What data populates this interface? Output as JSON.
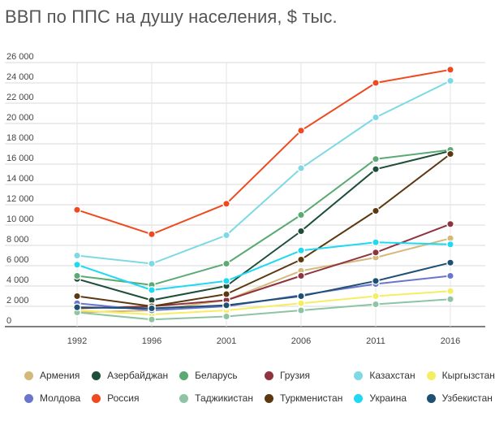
{
  "chart_data": {
    "type": "line",
    "title": "ВВП по ППС на душу населения, $ тыс.",
    "xlabel": "",
    "ylabel": "",
    "x": [
      "1992",
      "1996",
      "2001",
      "2006",
      "2011",
      "2016"
    ],
    "ylim": [
      0,
      26000
    ],
    "yticks": [
      "0",
      "2 000",
      "4 000",
      "6 000",
      "8 000",
      "10 000",
      "12 000",
      "14 000",
      "16 000",
      "18 000",
      "20 000",
      "22 000",
      "24 000",
      "26 000"
    ],
    "grid": "horizontal",
    "legend_position": "bottom",
    "series": [
      {
        "name": "Армения",
        "color": "#d4b97a",
        "values": [
          1400,
          1600,
          2600,
          5500,
          6800,
          8700
        ]
      },
      {
        "name": "Азербайджан",
        "color": "#1e4d38",
        "values": [
          4700,
          2600,
          4000,
          9400,
          15500,
          17300
        ]
      },
      {
        "name": "Беларусь",
        "color": "#5aaa72",
        "values": [
          5000,
          4100,
          6200,
          11000,
          16500,
          17400
        ]
      },
      {
        "name": "Грузия",
        "color": "#8e3440",
        "values": [
          1800,
          2000,
          2600,
          5000,
          7300,
          10100
        ]
      },
      {
        "name": "Казахстан",
        "color": "#7dd9e3",
        "values": [
          7000,
          6200,
          9000,
          15600,
          20600,
          24200
        ]
      },
      {
        "name": "Кыргызстан",
        "color": "#f5ee62",
        "values": [
          1600,
          1200,
          1600,
          2300,
          3000,
          3500
        ]
      },
      {
        "name": "Молдова",
        "color": "#6a76cc",
        "values": [
          2300,
          1600,
          2000,
          3100,
          4200,
          5000
        ]
      },
      {
        "name": "Россия",
        "color": "#ef4a1f",
        "values": [
          11500,
          9100,
          12100,
          19300,
          24000,
          25300
        ]
      },
      {
        "name": "Таджикистан",
        "color": "#8ec4a4",
        "values": [
          1400,
          700,
          1000,
          1600,
          2200,
          2700
        ]
      },
      {
        "name": "Туркменистан",
        "color": "#5b3810",
        "values": [
          3000,
          2000,
          3200,
          6600,
          11400,
          17000
        ]
      },
      {
        "name": "Украина",
        "color": "#1fd8f2",
        "values": [
          6100,
          3600,
          4500,
          7500,
          8300,
          8100
        ]
      },
      {
        "name": "Узбекистан",
        "color": "#1d5073",
        "values": [
          1900,
          1800,
          2100,
          3000,
          4500,
          6300
        ]
      }
    ]
  }
}
